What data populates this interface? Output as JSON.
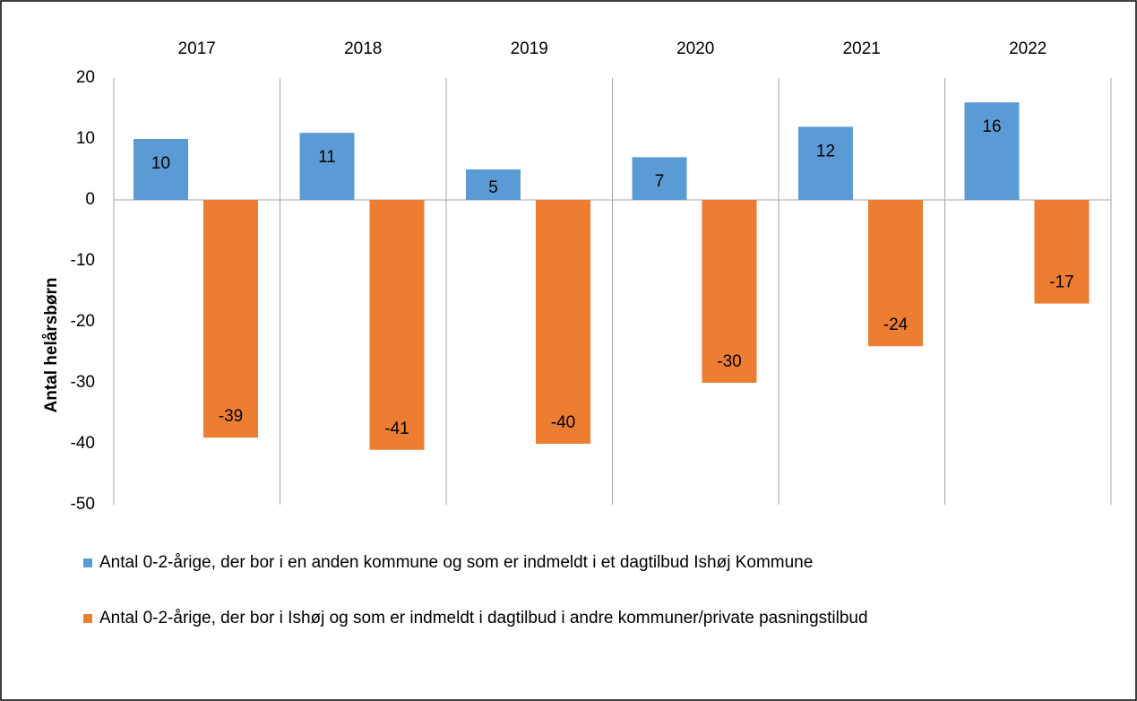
{
  "chart_data": {
    "type": "bar",
    "y_label": "Antal helårsbørn",
    "categories": [
      "2017",
      "2018",
      "2019",
      "2020",
      "2021",
      "2022"
    ],
    "series": [
      {
        "name": "Antal 0-2-årige, der bor i en anden kommune og som er indmeldt i et dagtilbud Ishøj Kommune",
        "color": "#5b9bd5",
        "values": [
          10,
          11,
          5,
          7,
          12,
          16
        ]
      },
      {
        "name": "Antal 0-2-årige, der bor i Ishøj og som er indmeldt i dagtilbud i andre kommuner/private pasningstilbud",
        "color": "#ed7d31",
        "values": [
          -39,
          -41,
          -40,
          -30,
          -24,
          -17
        ]
      }
    ],
    "ylim": [
      -50,
      20
    ],
    "yticks": [
      -50,
      -40,
      -30,
      -20,
      -10,
      0,
      10,
      20
    ],
    "grid": false,
    "data_labels": true,
    "legend": "bottom"
  }
}
